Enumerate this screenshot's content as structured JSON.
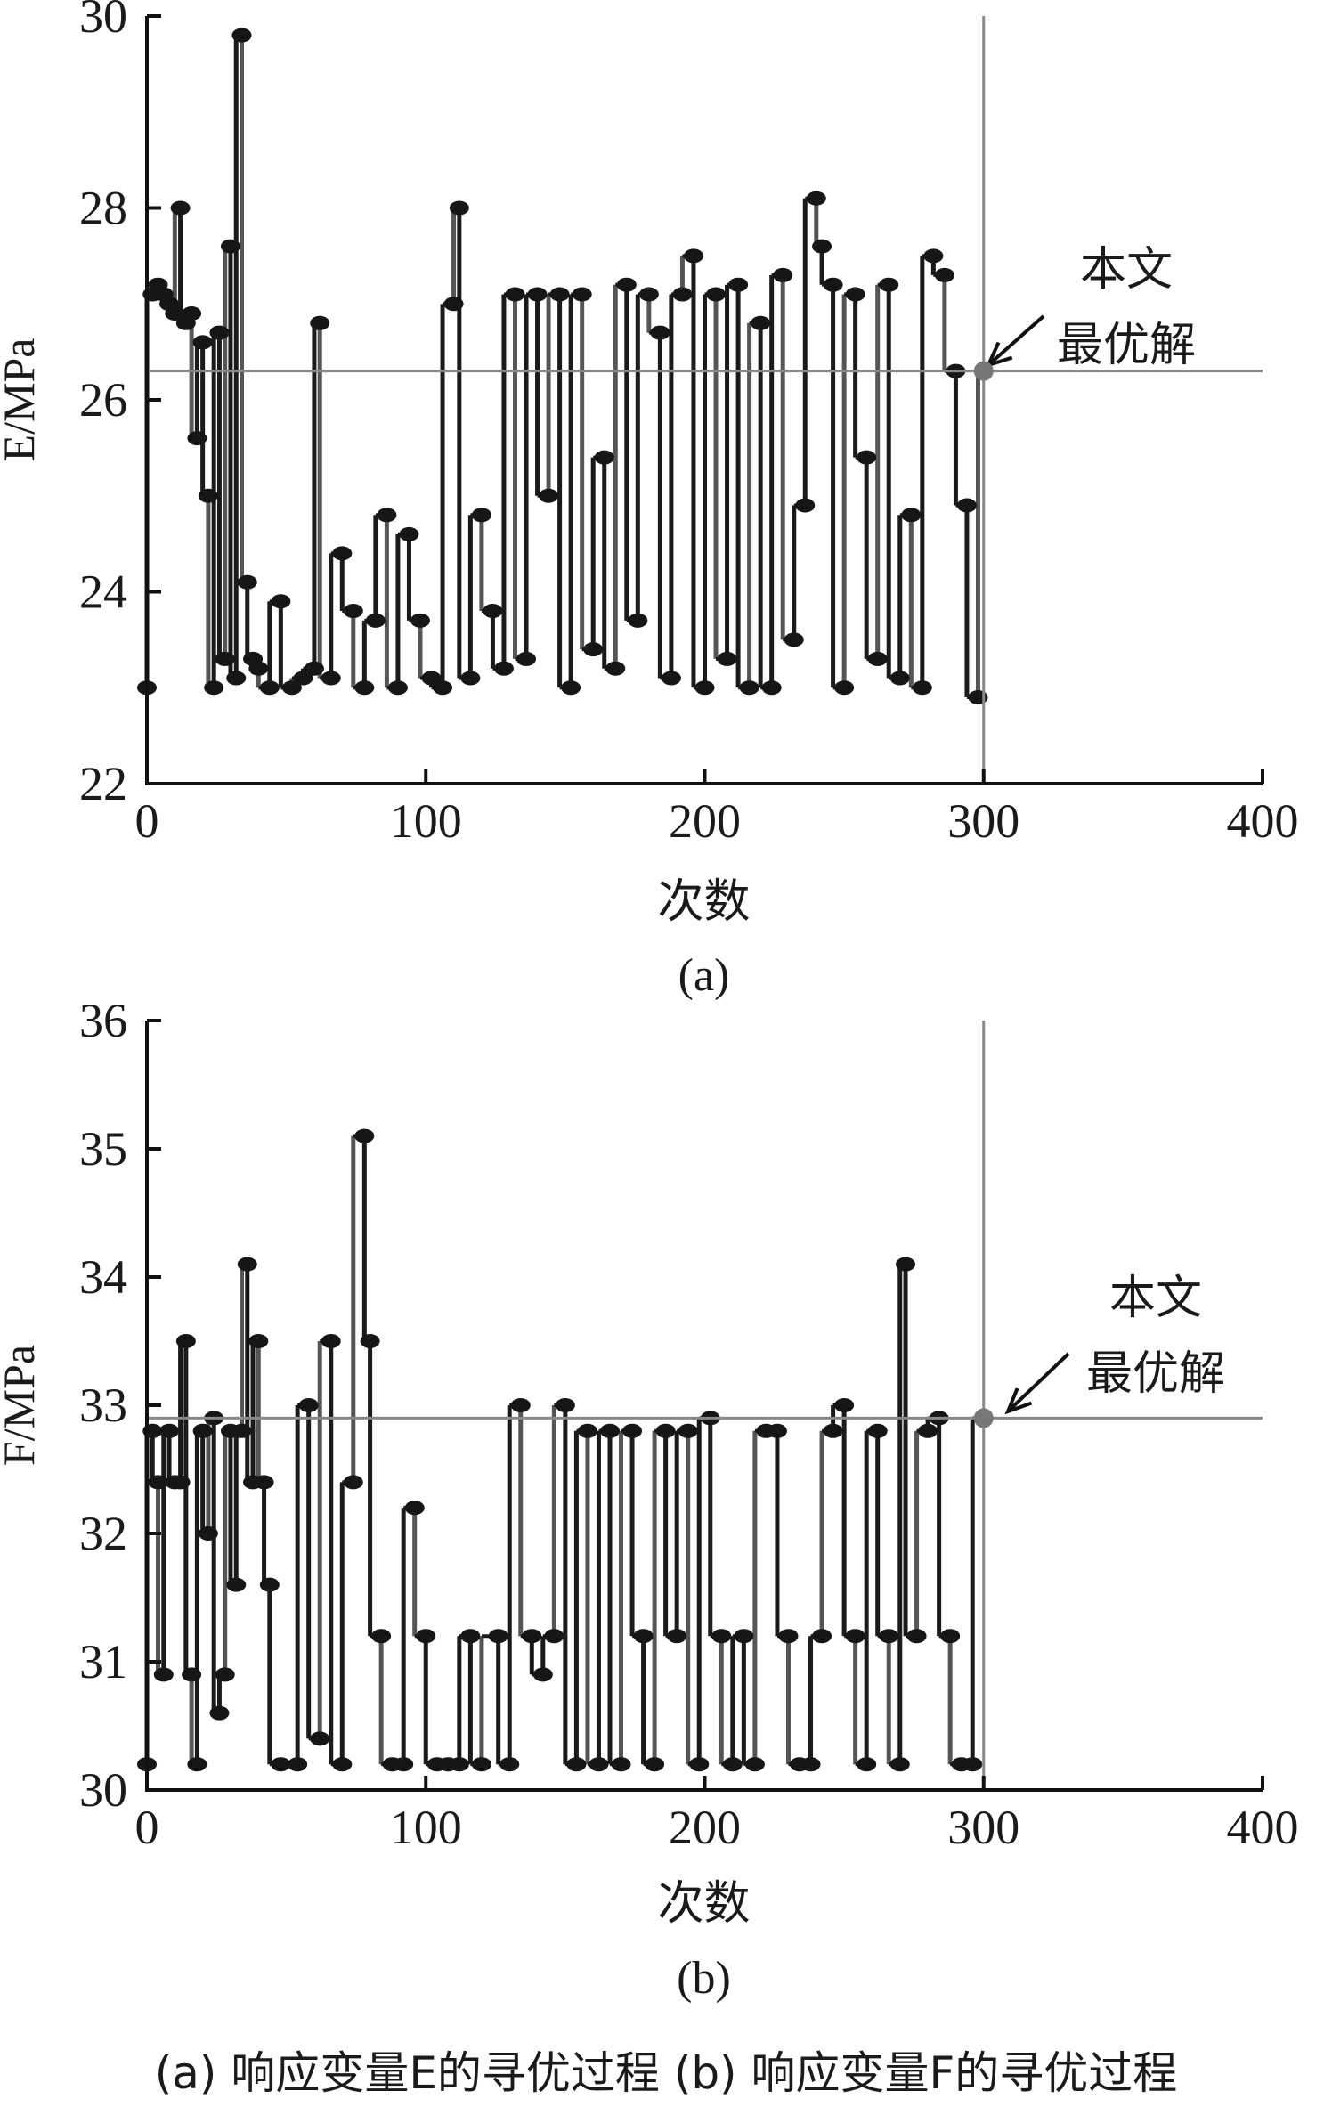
{
  "chart_data": [
    {
      "type": "scatter",
      "id": "a",
      "ylabel": "E/MPa",
      "xlabel": "次数",
      "subtitle": "(a)",
      "xlim": [
        0,
        400
      ],
      "ylim": [
        22,
        30
      ],
      "xticks": [
        "0",
        "100",
        "200",
        "300",
        "400"
      ],
      "yticks": [
        "22",
        "24",
        "26",
        "28",
        "30"
      ],
      "optimum": {
        "x": 300,
        "y": 26.3
      },
      "annotation": [
        "本文",
        "最优解"
      ],
      "series": [
        {
          "x": [
            0,
            2,
            4,
            6,
            8,
            10,
            12,
            14,
            16,
            18,
            20,
            22,
            24,
            26,
            28,
            30,
            32,
            34,
            36,
            38,
            40,
            44,
            48,
            52,
            56,
            60,
            62,
            66,
            70,
            74,
            78,
            82,
            86,
            90,
            94,
            98,
            102,
            106,
            110,
            112,
            116,
            120,
            124,
            128,
            132,
            136,
            140,
            144,
            148,
            152,
            156,
            160,
            164,
            168,
            172,
            176,
            180,
            184,
            188,
            192,
            196,
            200,
            204,
            208,
            212,
            216,
            220,
            224,
            228,
            232,
            236,
            240,
            242,
            246,
            250,
            254,
            258,
            262,
            266,
            270,
            274,
            278,
            282,
            286,
            290,
            294,
            298,
            300
          ],
          "y": [
            23.0,
            27.1,
            27.2,
            27.1,
            27.0,
            26.9,
            28.0,
            26.8,
            26.9,
            25.6,
            26.6,
            25.0,
            23.0,
            26.7,
            23.3,
            27.6,
            23.1,
            29.8,
            24.1,
            23.3,
            23.2,
            23.0,
            23.9,
            23.0,
            23.1,
            23.2,
            26.8,
            23.1,
            24.4,
            23.8,
            23.0,
            23.7,
            24.8,
            23.0,
            24.6,
            23.7,
            23.1,
            23.0,
            27.0,
            28.0,
            23.1,
            24.8,
            23.8,
            23.2,
            27.1,
            23.3,
            27.1,
            25.0,
            27.1,
            23.0,
            27.1,
            23.4,
            25.4,
            23.2,
            27.2,
            23.7,
            27.1,
            26.7,
            23.1,
            27.1,
            27.5,
            23.0,
            27.1,
            23.3,
            27.2,
            23.0,
            26.8,
            23.0,
            27.3,
            23.5,
            24.9,
            28.1,
            27.6,
            27.2,
            23.0,
            27.1,
            25.4,
            23.3,
            27.2,
            23.1,
            24.8,
            23.0,
            27.5,
            27.3,
            26.3,
            24.9,
            22.9,
            26.3
          ]
        }
      ]
    },
    {
      "type": "scatter",
      "id": "b",
      "ylabel": "F/MPa",
      "xlabel": "次数",
      "subtitle": "(b)",
      "xlim": [
        0,
        400
      ],
      "ylim": [
        30,
        36
      ],
      "xticks": [
        "0",
        "100",
        "200",
        "300",
        "400"
      ],
      "yticks": [
        "30",
        "31",
        "32",
        "33",
        "34",
        "35",
        "36"
      ],
      "optimum": {
        "x": 300,
        "y": 32.9
      },
      "annotation": [
        "本文",
        "最优解"
      ],
      "series": [
        {
          "x": [
            0,
            2,
            4,
            6,
            8,
            10,
            12,
            14,
            16,
            18,
            20,
            22,
            24,
            26,
            28,
            30,
            32,
            34,
            36,
            38,
            40,
            42,
            44,
            48,
            54,
            58,
            62,
            66,
            70,
            74,
            78,
            80,
            84,
            88,
            92,
            96,
            100,
            104,
            108,
            112,
            116,
            120,
            126,
            130,
            134,
            138,
            142,
            146,
            150,
            154,
            158,
            162,
            166,
            170,
            174,
            178,
            182,
            186,
            190,
            194,
            198,
            202,
            206,
            210,
            214,
            218,
            222,
            226,
            230,
            234,
            238,
            242,
            246,
            250,
            254,
            258,
            262,
            266,
            270,
            272,
            276,
            280,
            284,
            288,
            292,
            296,
            300
          ],
          "y": [
            30.2,
            32.8,
            32.4,
            30.9,
            32.8,
            32.4,
            32.4,
            33.5,
            30.9,
            30.2,
            32.8,
            32.0,
            32.9,
            30.6,
            30.9,
            32.8,
            31.6,
            32.8,
            34.1,
            32.4,
            33.5,
            32.4,
            31.6,
            30.2,
            30.2,
            33.0,
            30.4,
            33.5,
            30.2,
            32.4,
            35.1,
            33.5,
            31.2,
            30.2,
            30.2,
            32.2,
            31.2,
            30.2,
            30.2,
            30.2,
            31.2,
            30.2,
            31.2,
            30.2,
            33.0,
            31.2,
            30.9,
            31.2,
            33.0,
            30.2,
            32.8,
            30.2,
            32.8,
            30.2,
            32.8,
            31.2,
            30.2,
            32.8,
            31.2,
            32.8,
            30.2,
            32.9,
            31.2,
            30.2,
            31.2,
            30.2,
            32.8,
            32.8,
            31.2,
            30.2,
            30.2,
            31.2,
            32.8,
            33.0,
            31.2,
            30.2,
            32.8,
            31.2,
            30.2,
            34.1,
            31.2,
            32.8,
            32.9,
            31.2,
            30.2,
            30.2,
            32.9
          ]
        }
      ]
    }
  ],
  "caption": "(a) 响应变量E的寻优过程    (b) 响应变量F的寻优过程"
}
